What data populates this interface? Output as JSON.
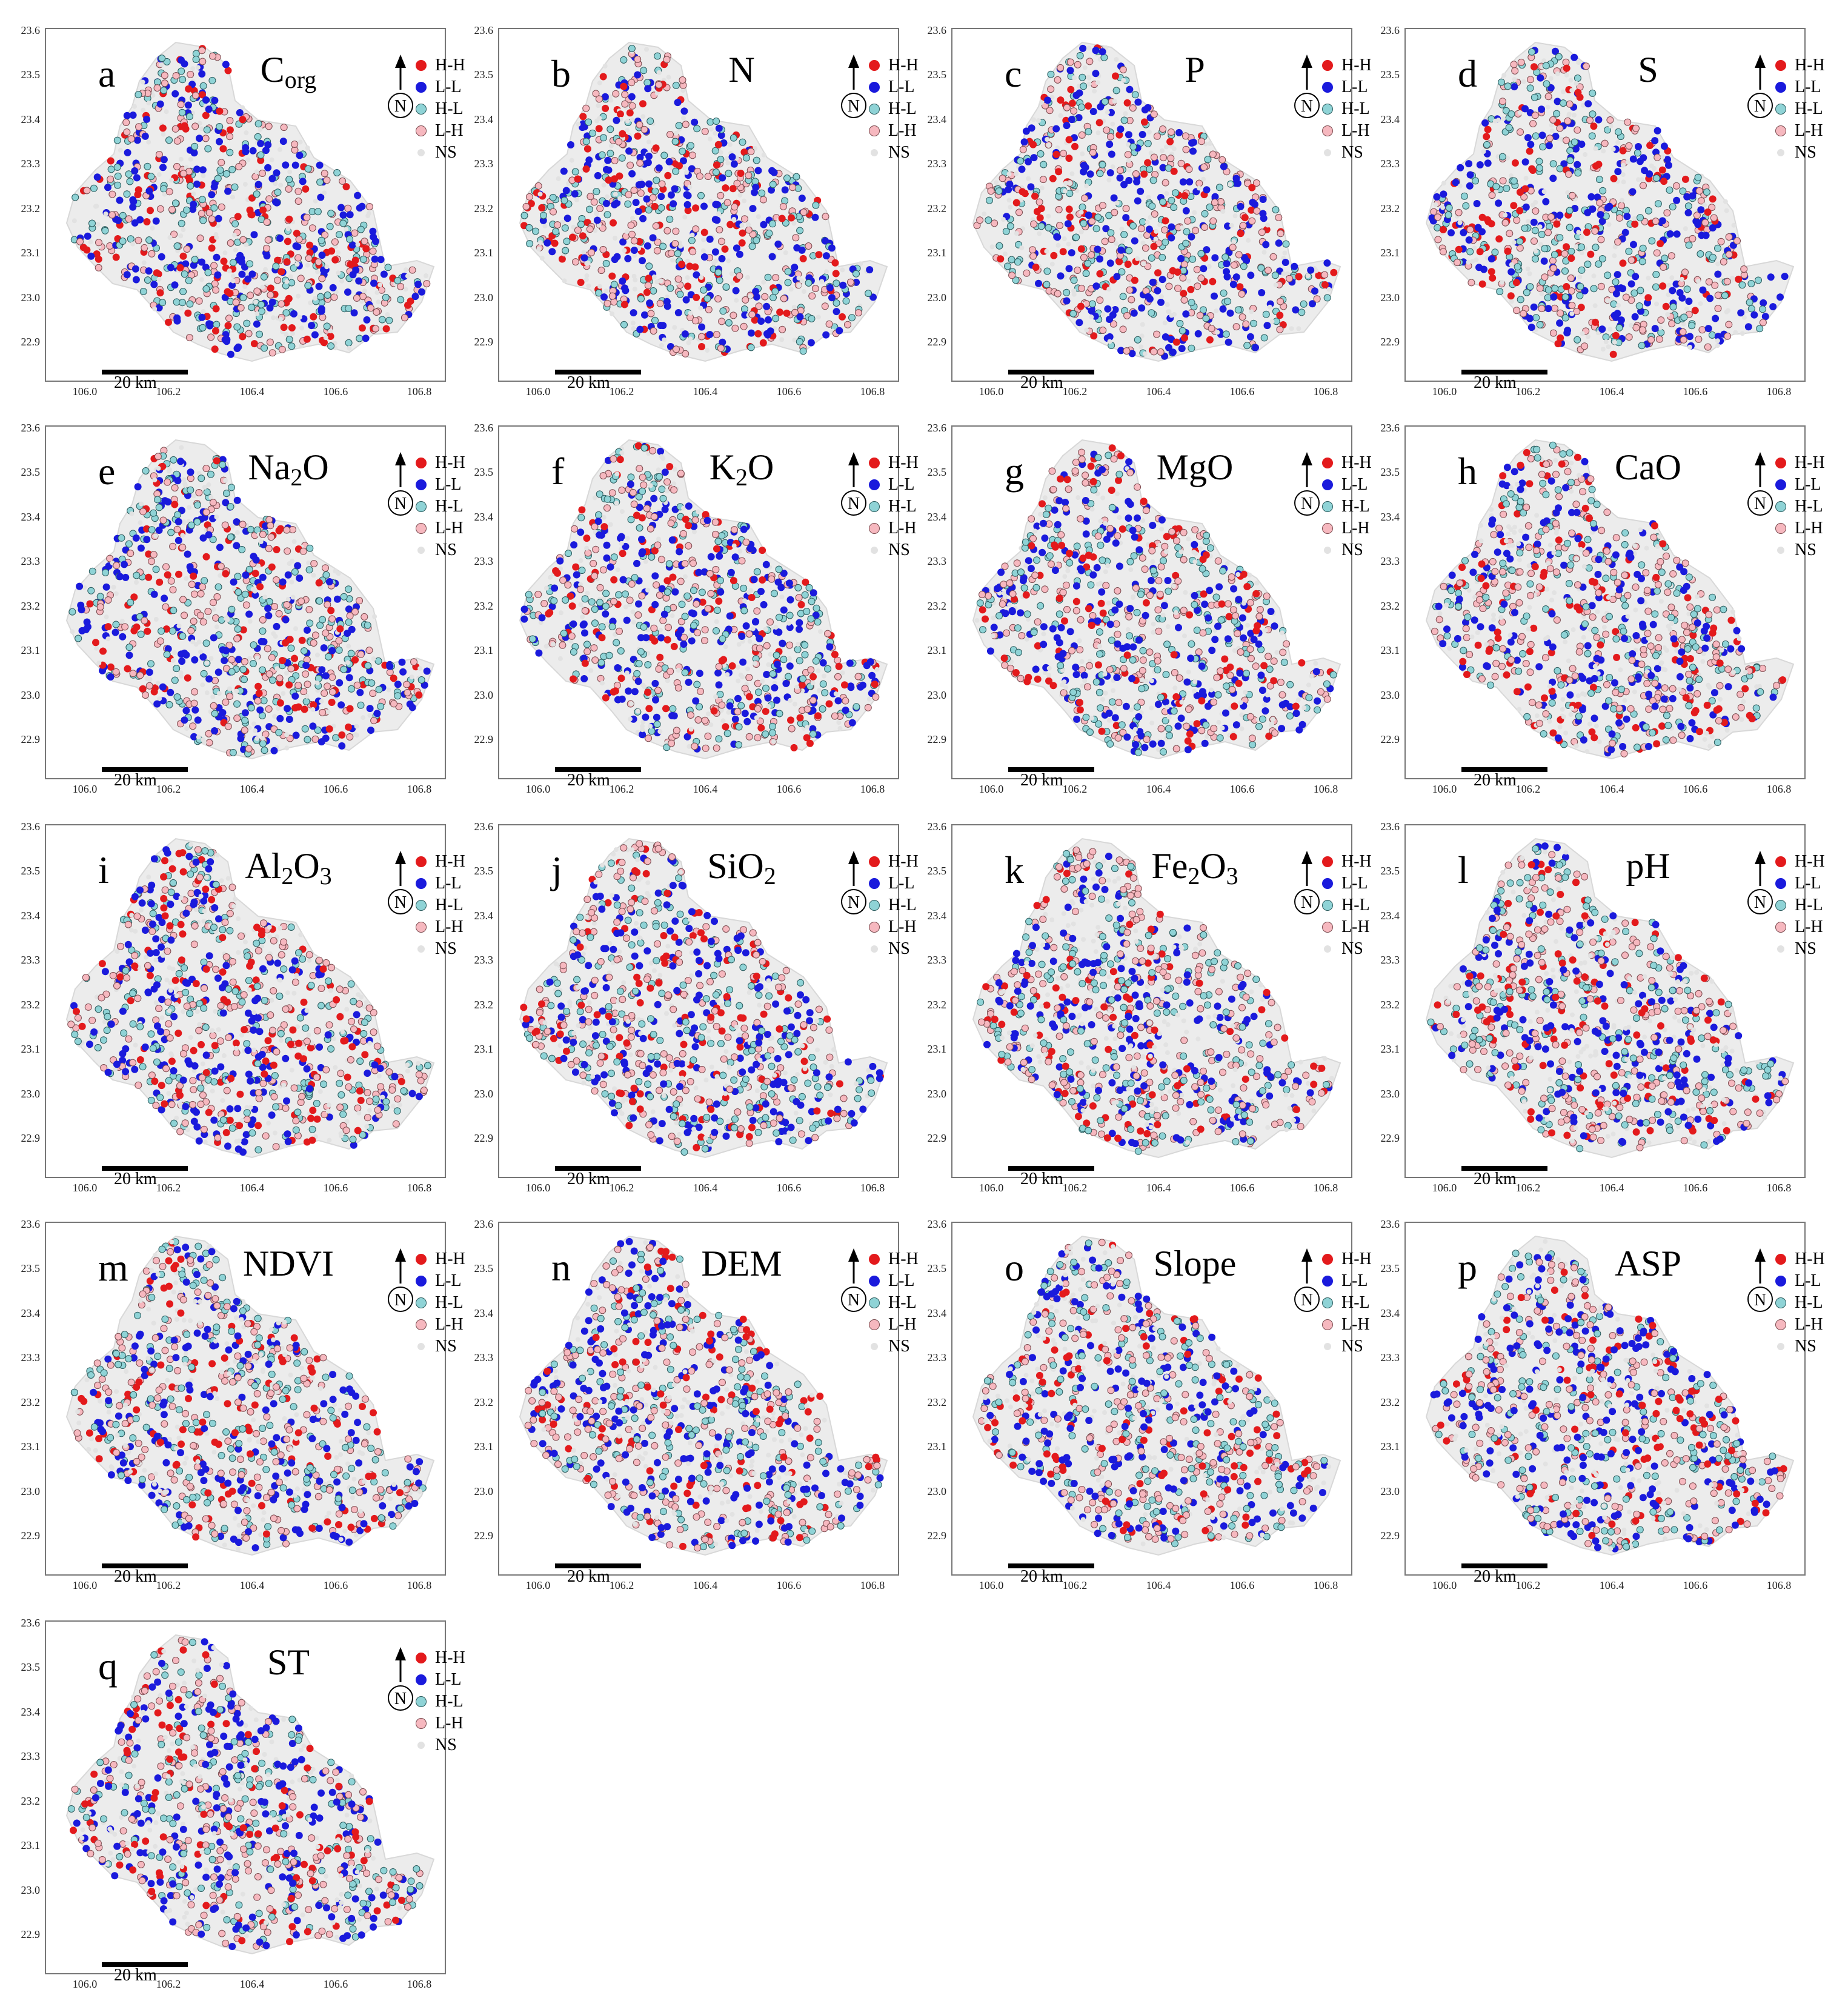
{
  "figure": {
    "legend": [
      {
        "label": "H-H",
        "fill": "#e31a1c",
        "stroke": "#e31a1c"
      },
      {
        "label": "L-L",
        "fill": "#1a1adc",
        "stroke": "#1a1adc"
      },
      {
        "label": "H-L",
        "fill": "#8fd3d6",
        "stroke": "#2a5a5c"
      },
      {
        "label": "L-H",
        "fill": "#f6b8bf",
        "stroke": "#7a4a4e"
      },
      {
        "label": "NS",
        "fill": "#e2e2e2",
        "stroke": "#e2e2e2"
      }
    ],
    "north_label": "N",
    "scale_label": "20 km",
    "x_ticks": [
      "106.0",
      "106.2",
      "106.4",
      "106.6",
      "106.8"
    ],
    "y_ticks": [
      "23.6",
      "23.5",
      "23.4",
      "23.3",
      "23.2",
      "23.1",
      "23.0",
      "22.9"
    ],
    "panels": [
      {
        "letter": "a",
        "title": "C",
        "title_sub": "org",
        "title_after": ""
      },
      {
        "letter": "b",
        "title": "N",
        "title_sub": "",
        "title_after": ""
      },
      {
        "letter": "c",
        "title": "P",
        "title_sub": "",
        "title_after": ""
      },
      {
        "letter": "d",
        "title": "S",
        "title_sub": "",
        "title_after": ""
      },
      {
        "letter": "e",
        "title": "Na",
        "title_sub": "2",
        "title_after": "O"
      },
      {
        "letter": "f",
        "title": "K",
        "title_sub": "2",
        "title_after": "O"
      },
      {
        "letter": "g",
        "title": "MgO",
        "title_sub": "",
        "title_after": ""
      },
      {
        "letter": "h",
        "title": "CaO",
        "title_sub": "",
        "title_after": ""
      },
      {
        "letter": "i",
        "title": "Al",
        "title_sub": "2",
        "title_after": "O3"
      },
      {
        "letter": "j",
        "title": "SiO",
        "title_sub": "2",
        "title_after": ""
      },
      {
        "letter": "k",
        "title": "Fe",
        "title_sub": "2",
        "title_after": "O3"
      },
      {
        "letter": "l",
        "title": "pH",
        "title_sub": "",
        "title_after": ""
      },
      {
        "letter": "m",
        "title": "NDVI",
        "title_sub": "",
        "title_after": ""
      },
      {
        "letter": "n",
        "title": "DEM",
        "title_sub": "",
        "title_after": ""
      },
      {
        "letter": "o",
        "title": "Slope",
        "title_sub": "",
        "title_after": ""
      },
      {
        "letter": "p",
        "title": "ASP",
        "title_sub": "",
        "title_after": ""
      },
      {
        "letter": "q",
        "title": "ST",
        "title_sub": "",
        "title_after": ""
      }
    ]
  }
}
